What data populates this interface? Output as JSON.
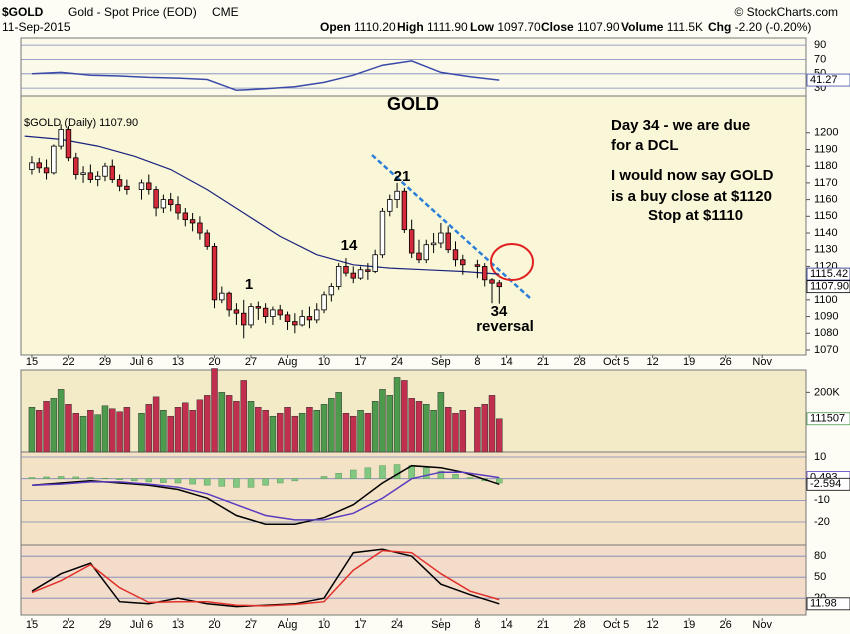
{
  "header": {
    "symbol": "$GOLD",
    "name": "Gold - Spot Price (EOD)",
    "exchange": "CME",
    "source": "© StockCharts.com",
    "date": "11-Sep-2015",
    "stats": [
      {
        "label": "Open",
        "value": "1110.20"
      },
      {
        "label": "High",
        "value": "1111.90"
      },
      {
        "label": "Low",
        "value": "1097.70"
      },
      {
        "label": "Close",
        "value": "1107.90"
      },
      {
        "label": "Volume",
        "value": "111.5K"
      },
      {
        "label": "Chg",
        "value": "-2.20 (-0.20%)"
      }
    ]
  },
  "chart_data": [
    {
      "type": "line",
      "ylim": [
        19,
        100
      ],
      "yticks": [
        90,
        70,
        50,
        30
      ],
      "grid": true,
      "series": [
        {
          "color": "#3a4aa8",
          "x": [
            0,
            4,
            8,
            12,
            16,
            20,
            24,
            28,
            32,
            36,
            40,
            44,
            48,
            52,
            56,
            60,
            64
          ],
          "values": [
            50,
            52,
            48,
            47,
            45,
            44,
            42,
            27,
            29,
            32,
            38,
            48,
            62,
            68,
            52,
            46,
            41.27
          ]
        }
      ],
      "tags": [
        {
          "value": 41.27,
          "color": "#3a4aa8"
        }
      ]
    },
    {
      "type": "candlestick",
      "legend_label": "$GOLD (Daily) 1107.90",
      "up_color": "#ffffff",
      "down_color": "#d42a3a",
      "xlim": [
        -1.5,
        106
      ],
      "ylim": [
        1067,
        1222
      ],
      "xticks": [
        {
          "value": 0,
          "label": "15"
        },
        {
          "value": 5,
          "label": "22"
        },
        {
          "value": 10,
          "label": "29"
        },
        {
          "value": 15,
          "label": "Jul 6"
        },
        {
          "value": 20,
          "label": "13"
        },
        {
          "value": 25,
          "label": "20"
        },
        {
          "value": 30,
          "label": "27"
        },
        {
          "value": 35,
          "label": "Aug"
        },
        {
          "value": 40,
          "label": "10"
        },
        {
          "value": 45,
          "label": "17"
        },
        {
          "value": 50,
          "label": "24"
        },
        {
          "value": 56,
          "label": "Sep"
        },
        {
          "value": 61,
          "label": "8"
        },
        {
          "value": 65,
          "label": "14"
        },
        {
          "value": 70,
          "label": "21"
        },
        {
          "value": 75,
          "label": "28"
        },
        {
          "value": 80,
          "label": "Oct 5"
        },
        {
          "value": 85,
          "label": "12"
        },
        {
          "value": 90,
          "label": "19"
        },
        {
          "value": 95,
          "label": "26"
        },
        {
          "value": 100,
          "label": "Nov"
        }
      ],
      "yticks": [
        1200,
        1190,
        1180,
        1170,
        1160,
        1150,
        1140,
        1130,
        1120,
        1110,
        1100,
        1090,
        1080,
        1070
      ],
      "x": [
        0,
        1,
        2,
        3,
        4,
        5,
        6,
        7,
        8,
        9,
        10,
        11,
        12,
        13,
        14,
        15,
        16,
        17,
        18,
        19,
        20,
        21,
        22,
        23,
        24,
        25,
        26,
        27,
        28,
        29,
        30,
        31,
        32,
        33,
        34,
        35,
        36,
        37,
        38,
        39,
        40,
        41,
        42,
        43,
        44,
        45,
        46,
        47,
        48,
        49,
        50,
        51,
        52,
        53,
        54,
        55,
        56,
        57,
        58,
        59,
        60,
        61,
        62,
        63,
        64
      ],
      "open": [
        1178,
        1182,
        1179,
        1176,
        1192,
        1202,
        1185,
        1175,
        1176,
        1172,
        1174,
        1180,
        1172,
        1168,
        null,
        1166,
        1170,
        1166,
        1155,
        1160,
        1157,
        1152,
        1148,
        1146,
        1140,
        1132,
        1100,
        1104,
        1094,
        1092,
        1085,
        1096,
        1095,
        1090,
        1094,
        1091,
        1087,
        1085,
        1090,
        1088,
        1094,
        1103,
        1108,
        1120,
        1116,
        1113,
        1118,
        1117,
        1127,
        1153,
        1160,
        1165,
        1142,
        1128,
        1124,
        1133,
        1134,
        1140,
        1130,
        1124,
        null,
        1121,
        1120,
        1112,
        1110.2
      ],
      "high": [
        1186,
        1185,
        1184,
        1193,
        1205,
        1204,
        1188,
        1180,
        1181,
        1177,
        1182,
        1184,
        1175,
        1172,
        null,
        1172,
        1175,
        1168,
        1163,
        1164,
        1162,
        1155,
        1152,
        1150,
        1142,
        1134,
        1108,
        1105,
        1098,
        1100,
        1098,
        1099,
        1098,
        1096,
        1097,
        1093,
        1092,
        1094,
        1096,
        1098,
        1105,
        1110,
        1122,
        1125,
        1120,
        1120,
        1122,
        1130,
        1155,
        1163,
        1170,
        1167,
        1148,
        1136,
        1136,
        1140,
        1146,
        1144,
        1135,
        1127,
        null,
        1124,
        1122,
        1113,
        1111.9
      ],
      "low": [
        1175,
        1176,
        1172,
        1175,
        1190,
        1183,
        1172,
        1170,
        1170,
        1168,
        1171,
        1170,
        1165,
        1163,
        null,
        1160,
        1163,
        1150,
        1152,
        1153,
        1148,
        1144,
        1141,
        1136,
        1130,
        1095,
        1098,
        1090,
        1085,
        1077,
        1083,
        1088,
        1086,
        1085,
        1088,
        1082,
        1080,
        1084,
        1083,
        1086,
        1092,
        1099,
        1106,
        1114,
        1110,
        1112,
        1112,
        1116,
        1125,
        1150,
        1155,
        1140,
        1125,
        1122,
        1122,
        1128,
        1131,
        1128,
        1120,
        1115,
        null,
        1113,
        1108,
        1098,
        1097.7
      ],
      "close": [
        1182,
        1179,
        1176,
        1192,
        1202,
        1185,
        1175,
        1176,
        1172,
        1174,
        1180,
        1172,
        1168,
        1166,
        null,
        1170,
        1166,
        1155,
        1160,
        1157,
        1152,
        1148,
        1146,
        1140,
        1132,
        1100,
        1104,
        1094,
        1092,
        1085,
        1096,
        1095,
        1090,
        1094,
        1091,
        1087,
        1085,
        1090,
        1088,
        1094,
        1103,
        1108,
        1120,
        1116,
        1113,
        1118,
        1117,
        1127,
        1153,
        1160,
        1165,
        1142,
        1128,
        1124,
        1133,
        1134,
        1140,
        1130,
        1124,
        1121,
        null,
        1120,
        1112,
        1110,
        1107.9
      ],
      "moving_average": {
        "color": "#1a237e",
        "x": [
          -1,
          4,
          9,
          14,
          19,
          24,
          29,
          34,
          39,
          44,
          49,
          54,
          59,
          64
        ],
        "values": [
          1198,
          1196,
          1192,
          1186,
          1178,
          1166,
          1152,
          1138,
          1127,
          1121,
          1119,
          1118,
          1117,
          1115.42
        ]
      },
      "tags": [
        {
          "value": 1115.42,
          "color": "#1a237e"
        },
        {
          "value": 1107.9,
          "label": "1107.90",
          "color": "#000000"
        }
      ],
      "annotations": [
        "GOLD",
        "Day 34 - we are due",
        "for a DCL",
        "I would now say GOLD",
        "is a buy close at $1120",
        "Stop at $1110",
        "1",
        "14",
        "21",
        "34",
        "reversal"
      ]
    },
    {
      "type": "bar",
      "up_color": "#4d9a4d",
      "down_color": "#c0304e",
      "ylim": [
        0,
        275000
      ],
      "yticks": [
        {
          "value": 200000,
          "label": "200K"
        }
      ],
      "values": [
        150000,
        140000,
        170000,
        180000,
        210000,
        160000,
        130000,
        120000,
        140000,
        125000,
        155000,
        145000,
        135000,
        150000,
        null,
        130000,
        160000,
        185000,
        140000,
        120000,
        150000,
        165000,
        140000,
        175000,
        190000,
        280000,
        200000,
        190000,
        170000,
        240000,
        170000,
        150000,
        140000,
        120000,
        130000,
        150000,
        120000,
        130000,
        150000,
        140000,
        160000,
        180000,
        200000,
        130000,
        120000,
        140000,
        130000,
        170000,
        210000,
        190000,
        250000,
        240000,
        180000,
        170000,
        160000,
        140000,
        200000,
        150000,
        130000,
        140000,
        null,
        150000,
        160000,
        190000,
        111507
      ],
      "tags": [
        {
          "value": 111507,
          "color": "#4d9a4d"
        }
      ]
    },
    {
      "type": "line",
      "ylim": [
        -30.6,
        12.3
      ],
      "yticks": [
        10,
        0,
        -10,
        -20
      ],
      "grid": true,
      "histogram": {
        "color": "#82c882",
        "x": [
          0,
          2,
          4,
          6,
          8,
          10,
          12,
          14,
          16,
          18,
          20,
          22,
          24,
          26,
          28,
          30,
          32,
          34,
          36,
          38,
          40,
          42,
          44,
          46,
          48,
          50,
          52,
          54,
          56,
          58,
          60,
          62,
          64
        ],
        "values": [
          0.5,
          0.8,
          1,
          0.8,
          0.5,
          0.2,
          -0.5,
          -1,
          -1.5,
          -1.8,
          -2,
          -2.5,
          -3,
          -3.5,
          -4,
          -4,
          -3,
          -2,
          -1,
          0,
          1,
          2.5,
          4,
          5,
          6,
          6.5,
          6,
          5,
          3.5,
          2,
          0.5,
          -1,
          -2
        ]
      },
      "series": [
        {
          "color": "#000000",
          "x": [
            0,
            4,
            8,
            12,
            16,
            20,
            24,
            28,
            32,
            36,
            40,
            44,
            48,
            52,
            56,
            59,
            64
          ],
          "values": [
            -3,
            -2,
            -1,
            -2,
            -3,
            -5,
            -9,
            -17,
            -21,
            -21,
            -18,
            -12,
            -2,
            6,
            5,
            3,
            -2.594
          ]
        },
        {
          "color": "#5a3cc0",
          "x": [
            0,
            4,
            8,
            12,
            16,
            20,
            24,
            28,
            32,
            36,
            40,
            44,
            48,
            52,
            56,
            59,
            64
          ],
          "values": [
            -3,
            -2.5,
            -1.5,
            -1.5,
            -2.5,
            -4,
            -7,
            -12,
            -17,
            -19,
            -19,
            -16,
            -9,
            0,
            3,
            3,
            0.493
          ]
        }
      ],
      "tags": [
        {
          "value": 0.493,
          "color": "#5a3cc0"
        },
        {
          "value": -2.594,
          "color": "#000000"
        }
      ]
    },
    {
      "type": "line",
      "ylim": [
        -4,
        96
      ],
      "yticks": [
        80,
        50,
        20
      ],
      "grid": true,
      "series": [
        {
          "color": "#000000",
          "x": [
            0,
            4,
            8,
            12,
            16,
            20,
            24,
            28,
            32,
            36,
            40,
            44,
            48,
            52,
            56,
            60,
            64
          ],
          "values": [
            30,
            55,
            70,
            15,
            12,
            20,
            12,
            8,
            10,
            12,
            20,
            85,
            90,
            80,
            40,
            25,
            11.98
          ]
        },
        {
          "color": "#e0302a",
          "x": [
            0,
            4,
            8,
            12,
            16,
            20,
            24,
            28,
            32,
            36,
            40,
            44,
            48,
            52,
            56,
            60,
            64
          ],
          "values": [
            28,
            45,
            68,
            35,
            14,
            15,
            15,
            10,
            9,
            11,
            15,
            60,
            88,
            85,
            55,
            30,
            18
          ]
        }
      ],
      "tags": [
        {
          "value": 11.98,
          "color": "#000000"
        }
      ]
    }
  ]
}
